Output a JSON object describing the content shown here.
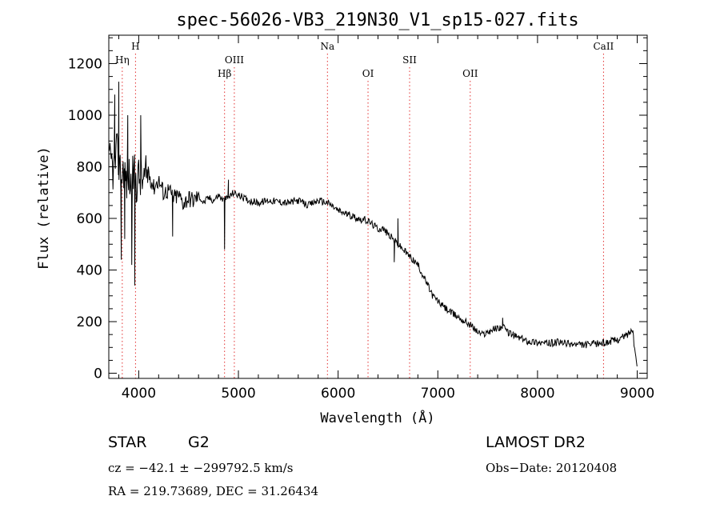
{
  "chart_data": {
    "type": "line",
    "title": "spec-56026-VB3_219N30_V1_sp15-027.fits",
    "xlabel": "Wavelength (Å)",
    "ylabel": "Flux (relative)",
    "xlim": [
      3700,
      9100
    ],
    "ylim": [
      -20,
      1310
    ],
    "x_ticks": [
      4000,
      5000,
      6000,
      7000,
      8000,
      9000
    ],
    "y_ticks": [
      0,
      200,
      400,
      600,
      800,
      1000,
      1200
    ],
    "grid": false,
    "series": [
      {
        "color": "#000000",
        "x": [
          3700,
          3725,
          3750,
          3775,
          3800,
          3825,
          3850,
          3875,
          3900,
          3925,
          3950,
          3975,
          4000,
          4050,
          4100,
          4150,
          4200,
          4250,
          4300,
          4350,
          4400,
          4450,
          4500,
          4550,
          4600,
          4650,
          4700,
          4750,
          4800,
          4850,
          4900,
          4950,
          5000,
          5100,
          5200,
          5300,
          5400,
          5500,
          5600,
          5700,
          5800,
          5900,
          6000,
          6100,
          6200,
          6300,
          6400,
          6450,
          6500,
          6550,
          6600,
          6650,
          6700,
          6750,
          6800,
          6850,
          6900,
          6950,
          7000,
          7050,
          7100,
          7150,
          7200,
          7250,
          7300,
          7350,
          7400,
          7450,
          7500,
          7550,
          7600,
          7650,
          7700,
          7750,
          7800,
          7900,
          8000,
          8100,
          8200,
          8300,
          8400,
          8500,
          8600,
          8700,
          8800,
          8900,
          8950,
          9000
        ],
        "y": [
          800,
          820,
          780,
          850,
          820,
          760,
          800,
          740,
          770,
          720,
          780,
          740,
          760,
          740,
          780,
          720,
          750,
          700,
          710,
          680,
          690,
          660,
          680,
          670,
          690,
          660,
          680,
          670,
          690,
          670,
          680,
          700,
          690,
          670,
          660,
          670,
          665,
          660,
          670,
          650,
          670,
          660,
          630,
          615,
          600,
          590,
          560,
          560,
          540,
          520,
          500,
          480,
          460,
          440,
          420,
          380,
          340,
          300,
          280,
          260,
          245,
          230,
          220,
          205,
          195,
          180,
          160,
          150,
          160,
          170,
          175,
          180,
          160,
          150,
          140,
          125,
          120,
          115,
          120,
          115,
          110,
          110,
          115,
          120,
          130,
          150,
          170,
          20
        ],
        "features": [
          {
            "x": 3760,
            "y": 1080
          },
          {
            "x": 3800,
            "y": 1130
          },
          {
            "x": 3825,
            "y": 440
          },
          {
            "x": 3860,
            "y": 520
          },
          {
            "x": 3890,
            "y": 1000
          },
          {
            "x": 3930,
            "y": 420
          },
          {
            "x": 3960,
            "y": 340
          },
          {
            "x": 4020,
            "y": 1000
          },
          {
            "x": 4340,
            "y": 530
          },
          {
            "x": 4861,
            "y": 480
          },
          {
            "x": 4900,
            "y": 750
          },
          {
            "x": 6563,
            "y": 430
          },
          {
            "x": 6600,
            "y": 600
          },
          {
            "x": 7650,
            "y": 215
          }
        ]
      }
    ],
    "line_markers": [
      {
        "label": "Hη",
        "x": 3835,
        "row": 1
      },
      {
        "label": "H",
        "x": 3968,
        "row": 0
      },
      {
        "label": "Hβ",
        "x": 4861,
        "row": 2
      },
      {
        "label": "OIII",
        "x": 4959,
        "row": 1
      },
      {
        "label": "Na",
        "x": 5893,
        "row": 0
      },
      {
        "label": "OI",
        "x": 6300,
        "row": 2
      },
      {
        "label": "SII",
        "x": 6717,
        "row": 1
      },
      {
        "label": "OII",
        "x": 7325,
        "row": 2
      },
      {
        "label": "CaII",
        "x": 8662,
        "row": 0
      }
    ],
    "marker_color": "#e23030"
  },
  "info": {
    "object_class": "STAR",
    "subclass": "G2",
    "survey": "LAMOST DR2",
    "cz": "cz = −42.1 ± −299792.5 km/s",
    "obs_date": "Obs−Date: 20120408",
    "coords": "RA = 219.73689, DEC =  31.26434"
  }
}
